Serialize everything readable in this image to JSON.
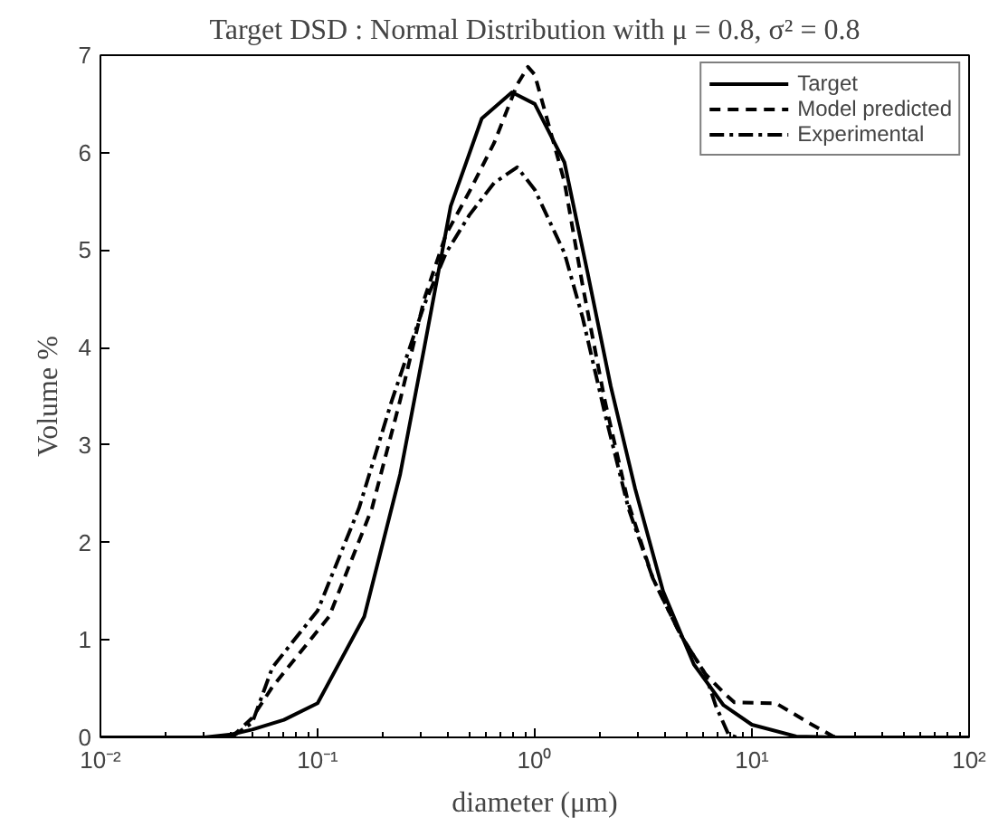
{
  "chart_data": {
    "type": "line",
    "title": "Target DSD : Normal Distribution with μ = 0.8, σ² = 0.8",
    "xlabel": "diameter (μm)",
    "ylabel": "Volume %",
    "log": "x",
    "grid": false,
    "legend": "top right",
    "xlim": [
      0.01,
      100
    ],
    "ylim": [
      0,
      7
    ],
    "xticks": [
      {
        "value": 0.01,
        "label": "10⁻²"
      },
      {
        "value": 0.1,
        "label": "10⁻¹"
      },
      {
        "value": 1,
        "label": "10⁰"
      },
      {
        "value": 10,
        "label": "10¹"
      },
      {
        "value": 100,
        "label": "10²"
      }
    ],
    "yticks": [
      0,
      1,
      2,
      3,
      4,
      5,
      6,
      7
    ],
    "series": [
      {
        "name": "Target",
        "color": "#000000",
        "line_style": "solid",
        "x": [
          0.01,
          0.03,
          0.04,
          0.05,
          0.07,
          0.1,
          0.164,
          0.24,
          0.31,
          0.41,
          0.57,
          0.785,
          1.0,
          1.37,
          1.75,
          2.24,
          2.9,
          3.9,
          5.4,
          7.4,
          10,
          16,
          25,
          100
        ],
        "values": [
          0,
          0,
          0.03,
          0.08,
          0.18,
          0.35,
          1.24,
          2.7,
          4.0,
          5.45,
          6.35,
          6.62,
          6.5,
          5.9,
          4.77,
          3.6,
          2.55,
          1.5,
          0.75,
          0.33,
          0.13,
          0.01,
          0,
          0
        ]
      },
      {
        "name": "Model predicted",
        "color": "#000000",
        "line_style": "dashed",
        "x": [
          0.04,
          0.05,
          0.062,
          0.113,
          0.178,
          0.24,
          0.31,
          0.39,
          0.5,
          0.65,
          0.83,
          0.93,
          1.0,
          1.37,
          1.66,
          2.1,
          2.7,
          3.5,
          4.7,
          6.1,
          7.4,
          8.3,
          12.9,
          18.6,
          23.7,
          26
        ],
        "values": [
          0,
          0.2,
          0.52,
          1.24,
          2.35,
          3.46,
          4.5,
          5.16,
          5.6,
          6.1,
          6.7,
          6.88,
          6.8,
          5.7,
          4.64,
          3.46,
          2.4,
          1.63,
          1.05,
          0.65,
          0.46,
          0.36,
          0.35,
          0.14,
          0.01,
          0
        ]
      },
      {
        "name": "Experimental",
        "color": "#000000",
        "line_style": "dashdot",
        "x": [
          0.04,
          0.05,
          0.062,
          0.1,
          0.155,
          0.22,
          0.31,
          0.39,
          0.5,
          0.65,
          0.83,
          1.0,
          1.37,
          1.66,
          2.1,
          2.7,
          3.5,
          4.7,
          6.1,
          6.8,
          7.8,
          8.5
        ],
        "values": [
          0,
          0.15,
          0.72,
          1.3,
          2.35,
          3.46,
          4.44,
          4.97,
          5.36,
          5.69,
          5.85,
          5.62,
          4.97,
          4.31,
          3.33,
          2.35,
          1.63,
          1.05,
          0.65,
          0.33,
          0.03,
          0
        ]
      }
    ]
  }
}
